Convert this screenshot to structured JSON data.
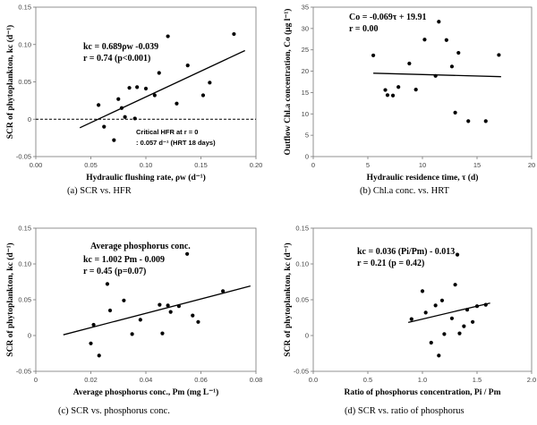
{
  "chart_data": [
    {
      "id": "a",
      "type": "scatter",
      "caption": "(a)  SCR  vs.  HFR",
      "xlabel": "Hydraulic flushing rate,  ρw  (d⁻¹)",
      "ylabel": "SCR of phytoplankton, kc (d⁻¹)",
      "xlim": [
        0,
        0.2
      ],
      "ylim": [
        -0.05,
        0.15
      ],
      "x_ticks": [
        "0.00",
        "0.05",
        "0.10",
        "0.15",
        "0.20"
      ],
      "y_ticks": [
        "-0.05",
        "0",
        "0.05",
        "0.10",
        "0.15"
      ],
      "annotation": [
        "kc = 0.689ρw -0.039",
        "r = 0.74 (p<0.001)"
      ],
      "note": [
        "Critical HFR at r = 0",
        ": 0.057 d⁻¹ (HRT 18 days)"
      ],
      "grid": false,
      "trend": {
        "slope": 0.689,
        "intercept": -0.039,
        "x_range": [
          0.04,
          0.19
        ]
      },
      "reference_line_y": 0,
      "points": [
        [
          0.057,
          0.019
        ],
        [
          0.062,
          -0.01
        ],
        [
          0.071,
          -0.028
        ],
        [
          0.075,
          0.027
        ],
        [
          0.078,
          0.015
        ],
        [
          0.081,
          0.003
        ],
        [
          0.085,
          0.042
        ],
        [
          0.09,
          0.001
        ],
        [
          0.092,
          0.043
        ],
        [
          0.1,
          0.041
        ],
        [
          0.108,
          0.032
        ],
        [
          0.112,
          0.062
        ],
        [
          0.12,
          0.111
        ],
        [
          0.128,
          0.021
        ],
        [
          0.138,
          0.072
        ],
        [
          0.152,
          0.032
        ],
        [
          0.158,
          0.049
        ],
        [
          0.18,
          0.114
        ]
      ]
    },
    {
      "id": "b",
      "type": "scatter",
      "caption": "(b)  Chl.a  conc.  vs.  HRT",
      "xlabel": "Hydraulic residence time,  τ (d)",
      "ylabel": "Outflow Chl.a concentration, Co (μg l⁻¹)",
      "xlim": [
        0,
        20
      ],
      "ylim": [
        0,
        35
      ],
      "x_ticks": [
        "0",
        "5",
        "10",
        "15",
        "20"
      ],
      "y_ticks": [
        "0",
        "5",
        "10",
        "15",
        "20",
        "25",
        "30",
        "35"
      ],
      "annotation": [
        "Co = -0.069τ + 19.91",
        "r = 0.00"
      ],
      "grid": false,
      "trend": {
        "slope": -0.069,
        "intercept": 19.91,
        "x_range": [
          5.5,
          17.2
        ]
      },
      "points": [
        [
          5.5,
          23.7
        ],
        [
          6.6,
          15.6
        ],
        [
          6.8,
          14.4
        ],
        [
          7.3,
          14.3
        ],
        [
          7.8,
          16.3
        ],
        [
          8.8,
          21.8
        ],
        [
          9.4,
          15.7
        ],
        [
          10.2,
          27.4
        ],
        [
          11.2,
          18.9
        ],
        [
          11.5,
          31.6
        ],
        [
          12.2,
          27.3
        ],
        [
          12.7,
          21.1
        ],
        [
          13.0,
          10.3
        ],
        [
          13.3,
          24.3
        ],
        [
          14.2,
          8.3
        ],
        [
          15.8,
          8.3
        ],
        [
          17.0,
          23.8
        ]
      ]
    },
    {
      "id": "c",
      "type": "scatter",
      "caption": "(c)  SCR  vs.  phosphorus  conc.",
      "xlabel": "Average phosphorus conc.,  Pm (mg L⁻¹)",
      "ylabel": "SCR of phytoplankton, kc (d⁻¹)",
      "xlim": [
        0,
        0.08
      ],
      "ylim": [
        -0.05,
        0.15
      ],
      "x_ticks": [
        "0",
        "0.02",
        "0.04",
        "0.06",
        "0.08"
      ],
      "y_ticks": [
        "-0.05",
        "0",
        "0.05",
        "0.10",
        "0.15"
      ],
      "annotation": [
        "Average phosphorus conc.",
        "kc = 1.002 Pm - 0.009",
        "r = 0.45 (p=0.07)"
      ],
      "grid": false,
      "trend": {
        "slope": 1.002,
        "intercept": -0.009,
        "x_range": [
          0.01,
          0.078
        ]
      },
      "points": [
        [
          0.02,
          -0.011
        ],
        [
          0.021,
          0.015
        ],
        [
          0.023,
          -0.028
        ],
        [
          0.026,
          0.072
        ],
        [
          0.027,
          0.035
        ],
        [
          0.032,
          0.049
        ],
        [
          0.035,
          0.002
        ],
        [
          0.038,
          0.022
        ],
        [
          0.045,
          0.043
        ],
        [
          0.046,
          0.003
        ],
        [
          0.048,
          0.042
        ],
        [
          0.049,
          0.033
        ],
        [
          0.052,
          0.041
        ],
        [
          0.055,
          0.114
        ],
        [
          0.057,
          0.028
        ],
        [
          0.059,
          0.019
        ],
        [
          0.068,
          0.062
        ]
      ]
    },
    {
      "id": "d",
      "type": "scatter",
      "caption": "(d)  SCR  vs.  ratio  of  phosphorus",
      "xlabel": "Ratio of phosphorus concentration,  Pi / Pm",
      "ylabel": "SCR of phytoplankton, kc (d⁻¹)",
      "xlim": [
        0,
        2
      ],
      "ylim": [
        -0.05,
        0.15
      ],
      "x_ticks": [
        "0.0",
        "0.5",
        "1.0",
        "1.5",
        "2.0"
      ],
      "y_ticks": [
        "-0.05",
        "0",
        "0.05",
        "0.10",
        "0.15"
      ],
      "annotation": [
        "kc = 0.036 (Pi/Pm) - 0.013",
        "r = 0.21 (p = 0.42)"
      ],
      "grid": false,
      "trend": {
        "slope": 0.036,
        "intercept": -0.013,
        "x_range": [
          0.87,
          1.62
        ]
      },
      "points": [
        [
          0.9,
          0.023
        ],
        [
          1.0,
          0.062
        ],
        [
          1.03,
          0.032
        ],
        [
          1.08,
          -0.01
        ],
        [
          1.12,
          0.042
        ],
        [
          1.15,
          -0.028
        ],
        [
          1.18,
          0.049
        ],
        [
          1.2,
          0.002
        ],
        [
          1.27,
          0.024
        ],
        [
          1.3,
          0.071
        ],
        [
          1.32,
          0.113
        ],
        [
          1.34,
          0.003
        ],
        [
          1.38,
          0.013
        ],
        [
          1.41,
          0.036
        ],
        [
          1.46,
          0.019
        ],
        [
          1.5,
          0.041
        ],
        [
          1.58,
          0.043
        ]
      ]
    }
  ]
}
